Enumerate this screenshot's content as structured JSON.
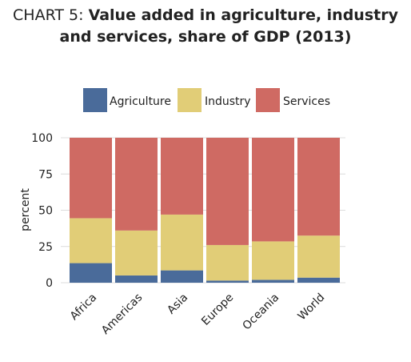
{
  "title": {
    "prefix": "CHART 5: ",
    "line1": "Value added in agriculture, industry",
    "line2": "and services, share of GDP (2013)"
  },
  "chart_data": {
    "type": "bar",
    "stacked": true,
    "categories": [
      "Africa",
      "Americas",
      "Asia",
      "Europe",
      "Oceania",
      "World"
    ],
    "series": [
      {
        "name": "Agriculture",
        "color": "#4a6b9a",
        "values": [
          13.5,
          5,
          8.5,
          1.5,
          2,
          3.5
        ]
      },
      {
        "name": "Industry",
        "color": "#e1cd77",
        "values": [
          31,
          31,
          38.5,
          24.5,
          26.5,
          29
        ]
      },
      {
        "name": "Services",
        "color": "#cf6a63",
        "values": [
          55.5,
          64,
          53,
          74,
          71.5,
          67.5
        ]
      }
    ],
    "ylabel": "percent",
    "ylim": [
      0,
      100
    ],
    "yticks": [
      0,
      25,
      50,
      75,
      100
    ],
    "legend_position": "top",
    "grid": true
  }
}
